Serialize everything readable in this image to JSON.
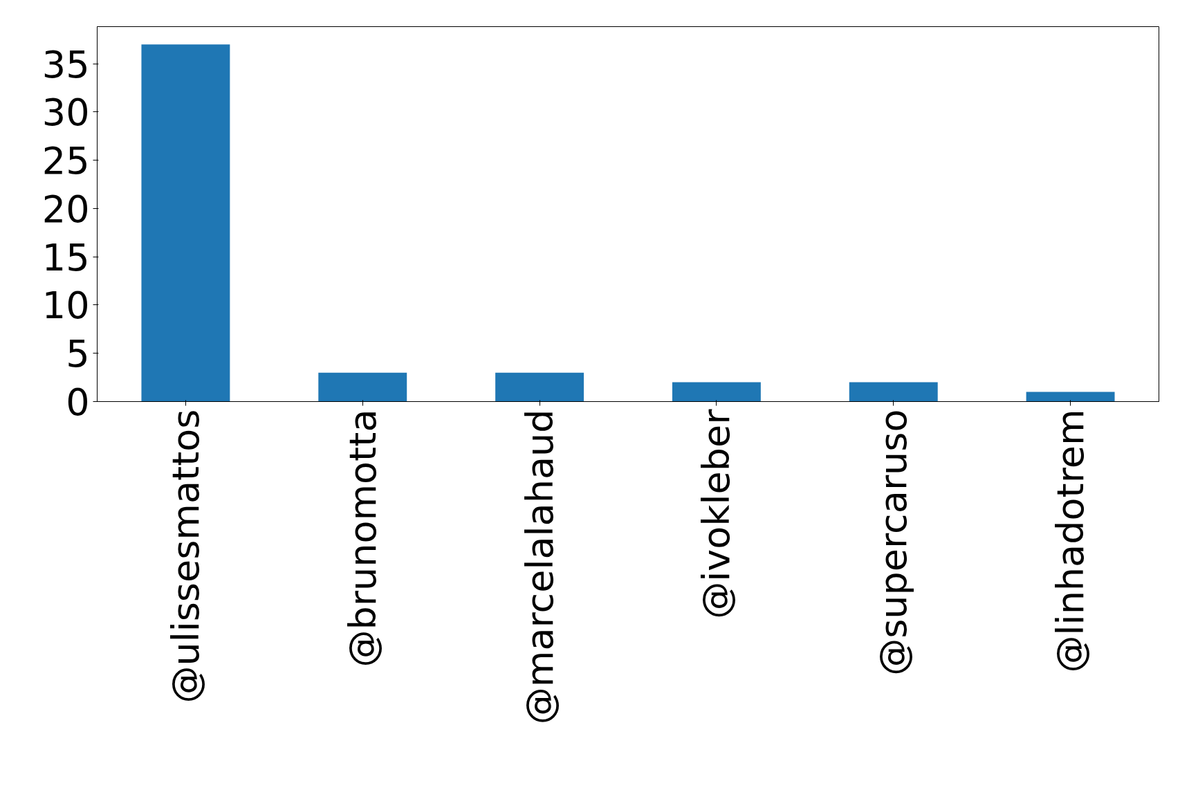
{
  "chart_data": {
    "type": "bar",
    "categories": [
      "@ulissesmattos",
      "@brunomotta",
      "@marcelalahaud",
      "@ivokleber",
      "@supercaruso",
      "@linhadotrem"
    ],
    "values": [
      37,
      3,
      3,
      2,
      2,
      1
    ],
    "color": "#1f77b4",
    "ylim": [
      0,
      38.85
    ],
    "yticks": [
      0,
      5,
      10,
      15,
      20,
      25,
      30,
      35
    ],
    "grid": false
  }
}
